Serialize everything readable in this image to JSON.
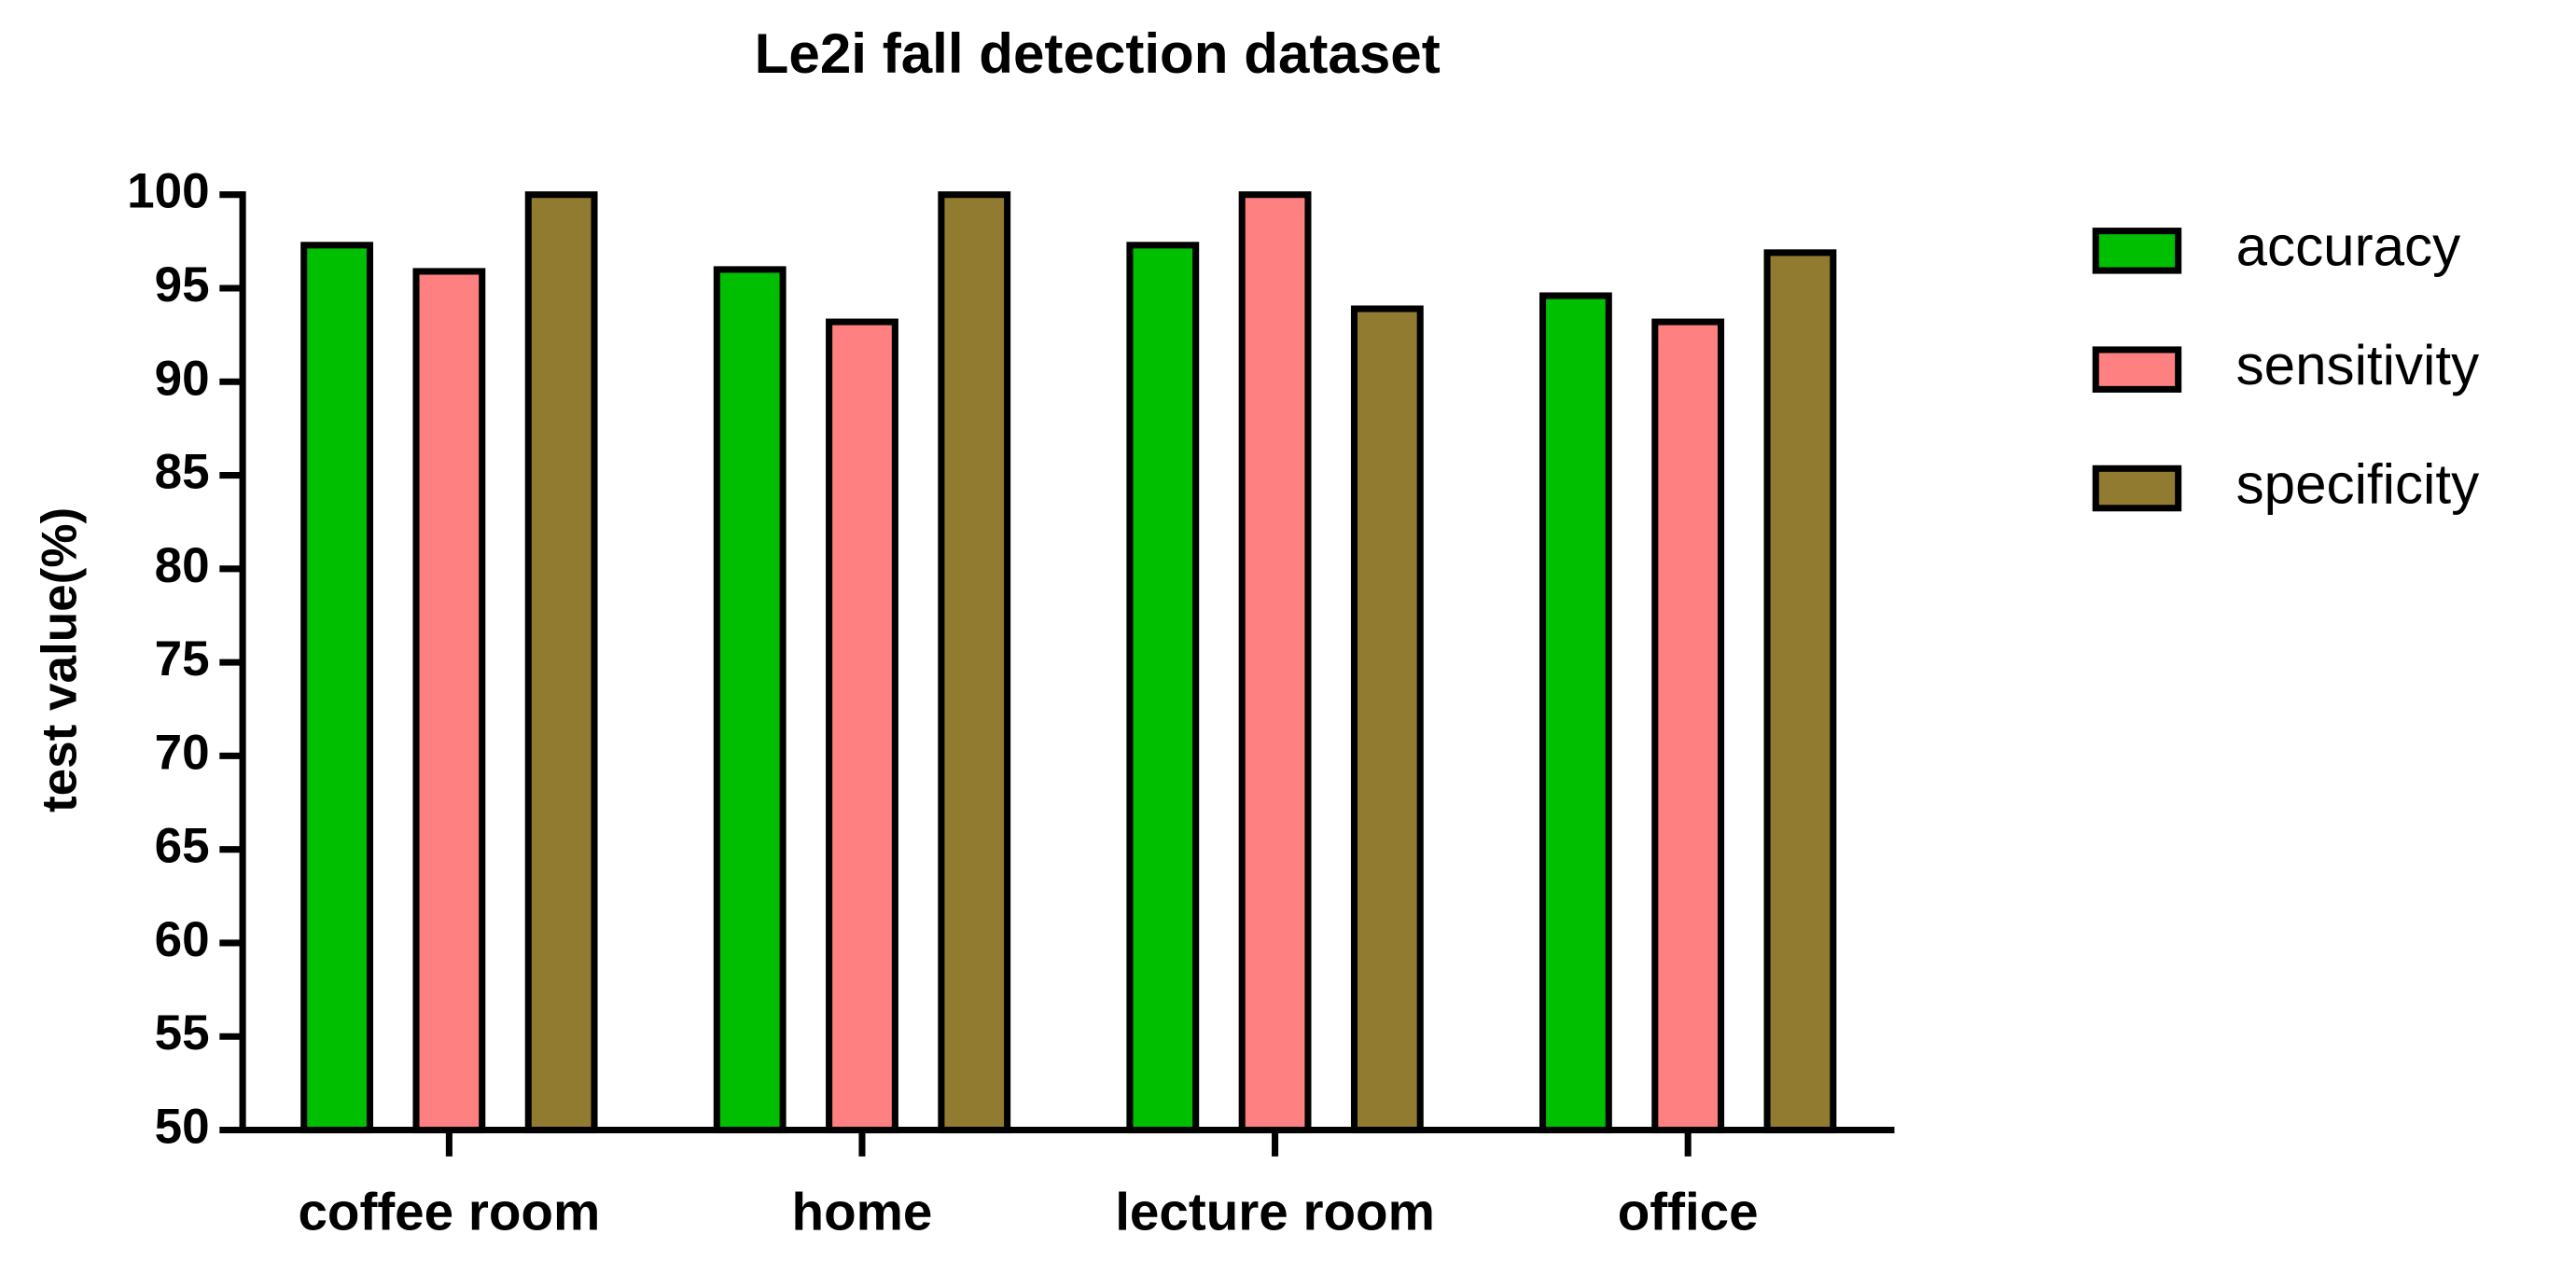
{
  "chart_data": {
    "type": "bar",
    "title": "Le2i fall detection dataset",
    "y_label": "test value(%)",
    "categories": [
      "coffee room",
      "home",
      "lecture room",
      "office"
    ],
    "series": [
      {
        "name": "accuracy",
        "color": "#00bf00",
        "values": [
          97.3,
          96.0,
          97.3,
          94.6
        ]
      },
      {
        "name": "sensitivity",
        "color": "#ff8080",
        "values": [
          95.9,
          93.2,
          100,
          93.2
        ]
      },
      {
        "name": "specificity",
        "color": "#917b30",
        "values": [
          100,
          100,
          93.9,
          96.9
        ]
      }
    ],
    "ylim": [
      50,
      100
    ],
    "yticks": [
      50,
      55,
      60,
      65,
      70,
      75,
      80,
      85,
      90,
      95,
      100
    ],
    "grid": false,
    "legend": "right"
  }
}
